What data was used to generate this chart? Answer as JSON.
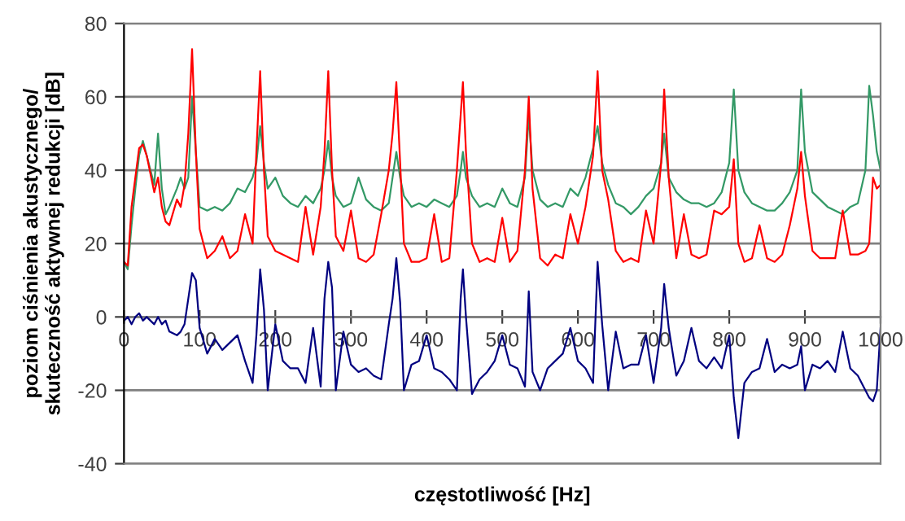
{
  "chart_data": {
    "type": "line",
    "xlabel": "częstotliwość [Hz]",
    "ylabel": "poziom ciśnienia akustycznego/\nskuteczność aktywnej redukcji [dB]",
    "x": [
      0,
      5,
      10,
      15,
      20,
      25,
      30,
      40,
      45,
      50,
      55,
      60,
      70,
      75,
      80,
      85,
      90,
      95,
      100,
      110,
      120,
      130,
      140,
      150,
      160,
      170,
      175,
      180,
      185,
      190,
      200,
      210,
      220,
      230,
      240,
      250,
      260,
      265,
      270,
      275,
      280,
      290,
      300,
      310,
      320,
      330,
      340,
      350,
      355,
      360,
      365,
      370,
      380,
      390,
      400,
      410,
      420,
      430,
      440,
      445,
      448,
      452,
      460,
      470,
      480,
      490,
      500,
      510,
      520,
      530,
      535,
      540,
      550,
      560,
      570,
      580,
      590,
      600,
      610,
      620,
      626,
      632,
      640,
      650,
      660,
      670,
      680,
      690,
      700,
      710,
      714,
      720,
      730,
      740,
      750,
      760,
      770,
      780,
      790,
      800,
      806,
      812,
      820,
      830,
      840,
      850,
      860,
      870,
      880,
      890,
      895,
      900,
      910,
      920,
      930,
      940,
      950,
      960,
      970,
      980,
      985,
      990,
      995,
      1000
    ],
    "series": [
      {
        "color": "#339966",
        "values": [
          15,
          13,
          25,
          35,
          44,
          48,
          44,
          36,
          50,
          35,
          28,
          30,
          35,
          38,
          35,
          38,
          60,
          45,
          30,
          29,
          30,
          29,
          31,
          35,
          34,
          38,
          42,
          52,
          42,
          35,
          38,
          33,
          31,
          30,
          33,
          31,
          35,
          40,
          48,
          38,
          33,
          30,
          31,
          38,
          32,
          30,
          29,
          31,
          38,
          45,
          38,
          33,
          30,
          31,
          30,
          32,
          31,
          30,
          33,
          40,
          45,
          38,
          33,
          30,
          31,
          30,
          35,
          31,
          30,
          38,
          55,
          40,
          32,
          30,
          31,
          30,
          35,
          33,
          38,
          46,
          52,
          42,
          36,
          31,
          30,
          28,
          30,
          33,
          35,
          42,
          50,
          38,
          34,
          32,
          31,
          31,
          30,
          31,
          34,
          42,
          62,
          40,
          34,
          31,
          30,
          29,
          29,
          31,
          34,
          40,
          62,
          45,
          34,
          32,
          30,
          29,
          28,
          30,
          31,
          40,
          63,
          55,
          45,
          40
        ]
      },
      {
        "color": "#ff0000",
        "values": [
          15,
          14,
          30,
          38,
          46,
          47,
          44,
          34,
          38,
          30,
          26,
          25,
          32,
          30,
          36,
          50,
          73,
          45,
          24,
          16,
          18,
          22,
          16,
          18,
          28,
          20,
          45,
          67,
          40,
          22,
          18,
          17,
          16,
          15,
          30,
          17,
          30,
          45,
          67,
          40,
          22,
          18,
          29,
          16,
          15,
          17,
          28,
          40,
          50,
          64,
          42,
          20,
          15,
          15,
          16,
          28,
          15,
          16,
          40,
          55,
          64,
          45,
          20,
          15,
          16,
          15,
          27,
          15,
          18,
          40,
          60,
          35,
          16,
          14,
          17,
          16,
          28,
          20,
          30,
          44,
          67,
          40,
          32,
          18,
          15,
          16,
          15,
          29,
          20,
          42,
          62,
          38,
          16,
          28,
          17,
          16,
          17,
          29,
          28,
          30,
          43,
          20,
          15,
          16,
          25,
          16,
          15,
          17,
          25,
          35,
          45,
          33,
          18,
          16,
          16,
          16,
          29,
          17,
          17,
          18,
          20,
          38,
          35,
          36
        ]
      },
      {
        "color": "#000080",
        "values": [
          -1,
          0,
          -2,
          0,
          1,
          -1,
          0,
          -2,
          0,
          -2,
          -1,
          -4,
          -5,
          -4,
          -2,
          5,
          12,
          10,
          -3,
          -10,
          -6,
          -9,
          -7,
          -5,
          -12,
          -18,
          -5,
          13,
          2,
          -20,
          -2,
          -12,
          -14,
          -14,
          -18,
          -3,
          -19,
          5,
          15,
          8,
          -20,
          -4,
          -13,
          -15,
          -14,
          -16,
          -17,
          -2,
          5,
          16,
          4,
          -20,
          -13,
          -12,
          -5,
          -14,
          -15,
          -17,
          -20,
          5,
          13,
          0,
          -21,
          -17,
          -15,
          -12,
          -5,
          -13,
          -14,
          -19,
          7,
          -15,
          -20,
          -14,
          -12,
          -10,
          -3,
          -12,
          -14,
          -18,
          15,
          -2,
          -20,
          -4,
          -14,
          -13,
          -13,
          -5,
          -18,
          -3,
          9,
          -3,
          -16,
          -12,
          -3,
          -12,
          -14,
          -11,
          -14,
          -5,
          -22,
          -33,
          -18,
          -15,
          -14,
          -6,
          -15,
          -13,
          -14,
          -13,
          -8,
          -20,
          -13,
          -14,
          -12,
          -15,
          -4,
          -14,
          -16,
          -20,
          -22,
          -23,
          -20,
          -3
        ]
      }
    ],
    "xlim": [
      0,
      1000
    ],
    "xticks": [
      0,
      100,
      200,
      300,
      400,
      500,
      600,
      700,
      800,
      900,
      1000
    ],
    "ylim": [
      -40,
      80
    ],
    "yticks": [
      -40,
      -20,
      0,
      20,
      40,
      60,
      80
    ],
    "grid": "y",
    "legend": false,
    "marker": "none",
    "line_style": "solid"
  }
}
